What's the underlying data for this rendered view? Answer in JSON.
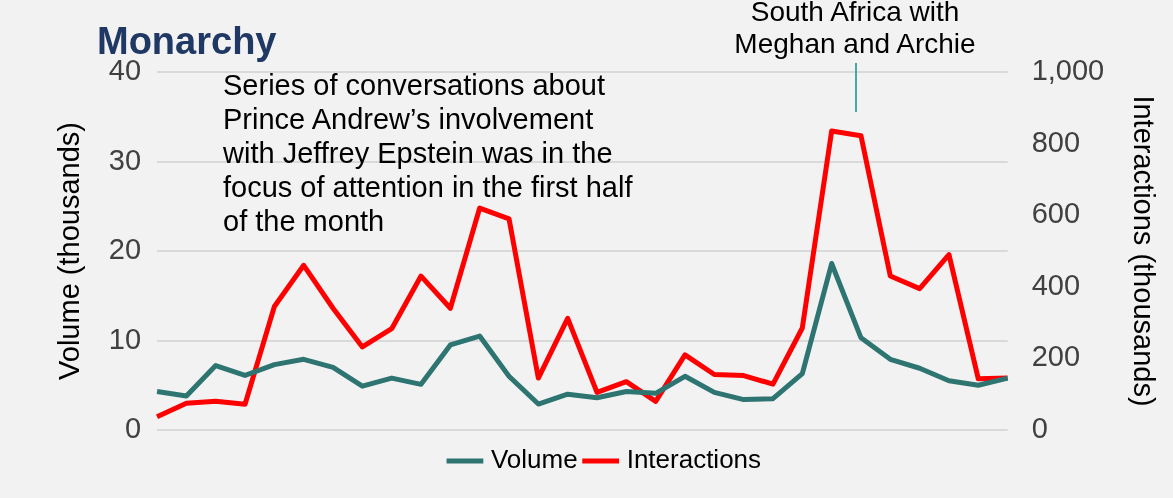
{
  "chart_data": {
    "type": "line",
    "title": "Monarchy",
    "ylabel": "Volume (thousands)",
    "y2label": "Interactions (thousands)",
    "categories": [
      null,
      null,
      null,
      null,
      null,
      null,
      null,
      null,
      null,
      null,
      null,
      null,
      null,
      null,
      null,
      null,
      null,
      null,
      null,
      null,
      null,
      null,
      null,
      null,
      null,
      null,
      null,
      null,
      null,
      null
    ],
    "series": [
      {
        "name": "Volume",
        "color": "#2e7572",
        "values": [
          4.3,
          3.8,
          7.2,
          6.1,
          7.3,
          7.9,
          7.0,
          4.9,
          5.8,
          5.1,
          9.5,
          10.5,
          6.0,
          2.9,
          4.0,
          3.6,
          4.3,
          4.1,
          6.0,
          4.2,
          3.4,
          3.5,
          6.3,
          18.6,
          10.3,
          7.9,
          6.9,
          5.5,
          5.0,
          5.8
        ]
      },
      {
        "name": "Interactions",
        "color": "#ff0000",
        "axis": "y2",
        "values": [
          37,
          75,
          80,
          72,
          345,
          460,
          340,
          232,
          283,
          430,
          340,
          620,
          590,
          145,
          312,
          105,
          135,
          80,
          210,
          155,
          152,
          128,
          285,
          835,
          822,
          430,
          395,
          490,
          143,
          145
        ]
      }
    ],
    "ylim": [
      0,
      40
    ],
    "yticks": [
      0,
      10,
      20,
      30,
      40
    ],
    "y2lim": [
      0,
      1000
    ],
    "y2ticks": [
      {
        "value": 0,
        "label": "0"
      },
      {
        "value": 200,
        "label": "200"
      },
      {
        "value": 400,
        "label": "400"
      },
      {
        "value": 600,
        "label": "600"
      },
      {
        "value": 800,
        "label": "800"
      },
      {
        "value": 1000,
        "label": "1,000"
      }
    ],
    "grid": "y",
    "legend": "bottom",
    "marker": "none",
    "line_style": "solid",
    "annotations": [
      "Series of conversations about Prince Andrew’s involvement with Jeffrey Epstein was in the focus of attention in the first half of the month",
      "South Africa with Meghan and Archie"
    ]
  }
}
